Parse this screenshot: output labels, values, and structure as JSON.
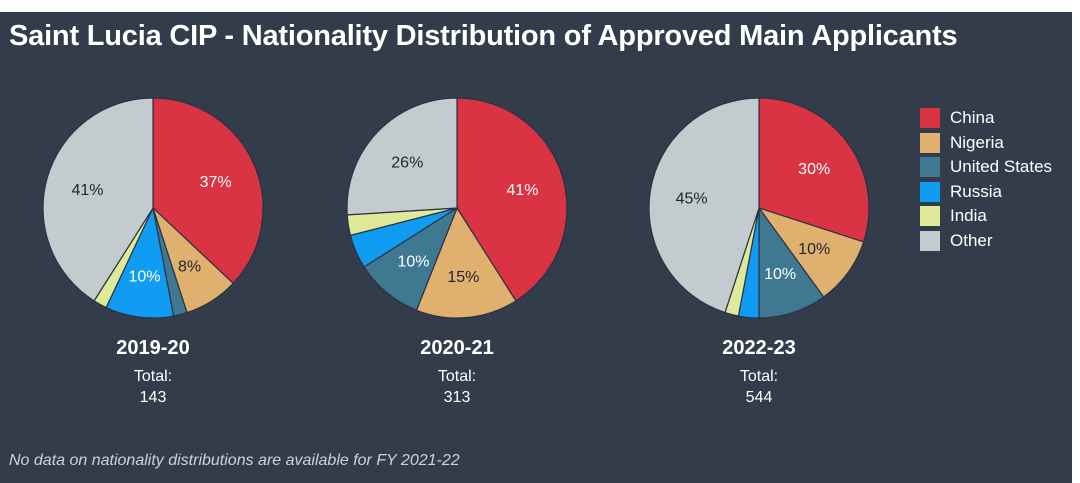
{
  "title": "Saint Lucia CIP - Nationality Distribution of Approved Main Applicants",
  "footnote": "No data on nationality distributions are available for FY 2021-22",
  "colors": {
    "China": "#d93344",
    "Nigeria": "#e0b06e",
    "United States": "#3e7891",
    "Russia": "#0f9cf2",
    "India": "#dfe99a",
    "Other": "#c3cbcf",
    "background": "#323c4a"
  },
  "chart_data": [
    {
      "type": "pie",
      "title": "2019-20",
      "total_label": "Total:",
      "total": "143",
      "categories": [
        "China",
        "Nigeria",
        "United States",
        "Russia",
        "India",
        "Other"
      ],
      "values": [
        37,
        8,
        2,
        10,
        2,
        41
      ],
      "data_labels": [
        "37%",
        "8%",
        "",
        "10%",
        "",
        "41%"
      ],
      "legend": "right"
    },
    {
      "type": "pie",
      "title": "2020-21",
      "total_label": "Total:",
      "total": "313",
      "categories": [
        "China",
        "Nigeria",
        "United States",
        "Russia",
        "India",
        "Other"
      ],
      "values": [
        41,
        15,
        10,
        5,
        3,
        26
      ],
      "data_labels": [
        "41%",
        "15%",
        "10%",
        "",
        "",
        "26%"
      ],
      "legend": "right"
    },
    {
      "type": "pie",
      "title": "2022-23",
      "total_label": "Total:",
      "total": "544",
      "categories": [
        "China",
        "Nigeria",
        "United States",
        "Russia",
        "India",
        "Other"
      ],
      "values": [
        30,
        10,
        10,
        3,
        2,
        45
      ],
      "data_labels": [
        "30%",
        "10%",
        "10%",
        "",
        "",
        "45%"
      ],
      "legend": "right"
    }
  ],
  "legend_items": [
    "China",
    "Nigeria",
    "United States",
    "Russia",
    "India",
    "Other"
  ]
}
